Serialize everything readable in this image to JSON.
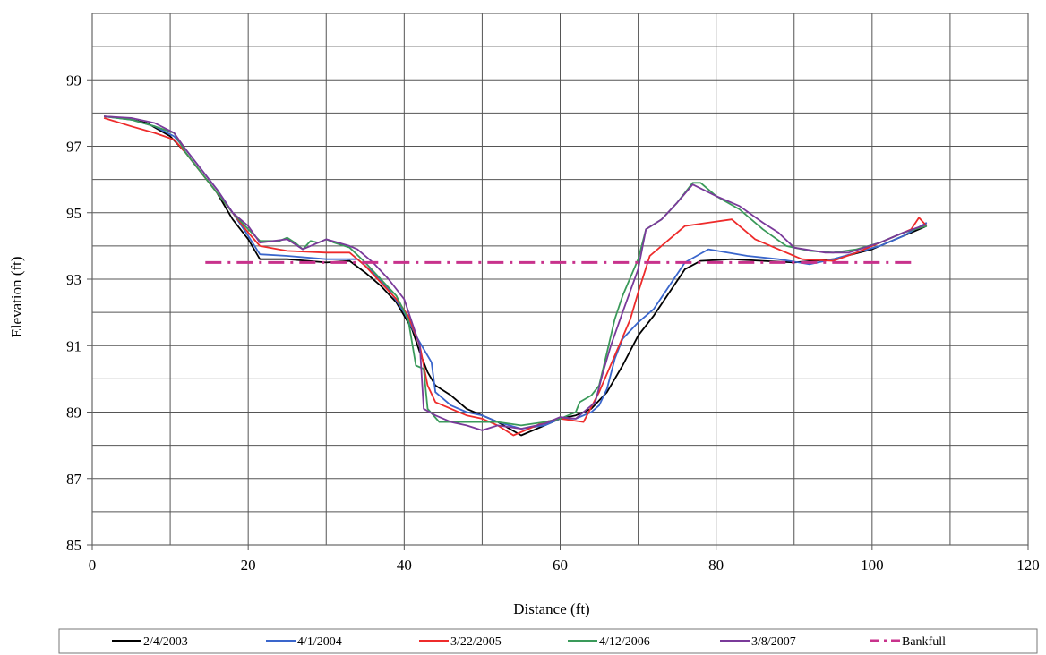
{
  "chart_data": {
    "type": "line",
    "title": "",
    "xlabel": "Distance (ft)",
    "ylabel": "Elevation (ft)",
    "xlim": [
      0,
      120
    ],
    "ylim": [
      85,
      101
    ],
    "xticks": [
      0,
      20,
      40,
      60,
      80,
      100,
      120
    ],
    "yticks": [
      85,
      87,
      89,
      91,
      93,
      95,
      97,
      99
    ],
    "grid": true,
    "legend_position": "bottom",
    "series": [
      {
        "name": "2/4/2003",
        "color": "#000000",
        "dash": "",
        "points": [
          [
            1.5,
            97.9
          ],
          [
            4,
            97.85
          ],
          [
            7,
            97.7
          ],
          [
            10,
            97.3
          ],
          [
            12,
            96.8
          ],
          [
            14,
            96.2
          ],
          [
            16,
            95.6
          ],
          [
            18,
            94.8
          ],
          [
            20,
            94.2
          ],
          [
            21.5,
            93.6
          ],
          [
            25,
            93.6
          ],
          [
            30,
            93.5
          ],
          [
            33,
            93.55
          ],
          [
            35,
            93.2
          ],
          [
            37,
            92.8
          ],
          [
            39,
            92.3
          ],
          [
            41,
            91.5
          ],
          [
            42,
            90.8
          ],
          [
            43,
            90.2
          ],
          [
            44,
            89.8
          ],
          [
            46,
            89.5
          ],
          [
            48,
            89.1
          ],
          [
            50,
            88.9
          ],
          [
            52,
            88.7
          ],
          [
            55,
            88.3
          ],
          [
            58,
            88.6
          ],
          [
            60,
            88.8
          ],
          [
            62,
            88.9
          ],
          [
            64,
            89.1
          ],
          [
            66,
            89.6
          ],
          [
            68,
            90.4
          ],
          [
            70,
            91.3
          ],
          [
            72,
            91.9
          ],
          [
            74,
            92.6
          ],
          [
            76,
            93.3
          ],
          [
            78,
            93.55
          ],
          [
            82,
            93.6
          ],
          [
            86,
            93.55
          ],
          [
            90,
            93.5
          ],
          [
            95,
            93.6
          ],
          [
            100,
            93.9
          ],
          [
            104,
            94.3
          ],
          [
            107,
            94.6
          ]
        ]
      },
      {
        "name": "4/1/2004",
        "color": "#3a66cc",
        "dash": "",
        "points": [
          [
            1.5,
            97.9
          ],
          [
            5,
            97.8
          ],
          [
            8,
            97.6
          ],
          [
            10.5,
            97.3
          ],
          [
            12,
            96.9
          ],
          [
            14,
            96.3
          ],
          [
            16,
            95.7
          ],
          [
            18,
            95.0
          ],
          [
            20,
            94.3
          ],
          [
            21.5,
            93.75
          ],
          [
            25,
            93.7
          ],
          [
            30,
            93.6
          ],
          [
            34,
            93.6
          ],
          [
            36,
            93.2
          ],
          [
            38,
            92.7
          ],
          [
            40,
            92.0
          ],
          [
            41.5,
            91.3
          ],
          [
            42.5,
            90.9
          ],
          [
            43.5,
            90.5
          ],
          [
            44,
            89.6
          ],
          [
            46,
            89.2
          ],
          [
            48,
            89.0
          ],
          [
            50,
            88.9
          ],
          [
            52,
            88.7
          ],
          [
            55,
            88.5
          ],
          [
            58,
            88.6
          ],
          [
            60,
            88.8
          ],
          [
            62,
            88.8
          ],
          [
            64,
            89.0
          ],
          [
            65,
            89.2
          ],
          [
            66,
            89.7
          ],
          [
            67,
            90.6
          ],
          [
            68,
            91.2
          ],
          [
            70,
            91.7
          ],
          [
            72,
            92.1
          ],
          [
            74,
            92.8
          ],
          [
            76,
            93.5
          ],
          [
            79,
            93.9
          ],
          [
            84,
            93.7
          ],
          [
            88,
            93.6
          ],
          [
            92,
            93.45
          ],
          [
            95,
            93.6
          ],
          [
            98,
            93.8
          ],
          [
            101,
            94.0
          ],
          [
            104,
            94.3
          ],
          [
            107,
            94.7
          ]
        ]
      },
      {
        "name": "3/22/2005",
        "color": "#ee2b2b",
        "dash": "",
        "points": [
          [
            1.5,
            97.85
          ],
          [
            5,
            97.6
          ],
          [
            8,
            97.4
          ],
          [
            10.5,
            97.2
          ],
          [
            12,
            96.8
          ],
          [
            14,
            96.2
          ],
          [
            16,
            95.6
          ],
          [
            18,
            95.0
          ],
          [
            20,
            94.4
          ],
          [
            21.5,
            94.0
          ],
          [
            25,
            93.85
          ],
          [
            30,
            93.8
          ],
          [
            33,
            93.8
          ],
          [
            35,
            93.4
          ],
          [
            37,
            92.9
          ],
          [
            39,
            92.4
          ],
          [
            40.5,
            91.9
          ],
          [
            42,
            91.0
          ],
          [
            43,
            89.8
          ],
          [
            44,
            89.3
          ],
          [
            46,
            89.1
          ],
          [
            48,
            88.9
          ],
          [
            50,
            88.8
          ],
          [
            52,
            88.6
          ],
          [
            54,
            88.3
          ],
          [
            56,
            88.5
          ],
          [
            58,
            88.7
          ],
          [
            60,
            88.8
          ],
          [
            63,
            88.7
          ],
          [
            65,
            89.6
          ],
          [
            67,
            90.7
          ],
          [
            69,
            91.8
          ],
          [
            70,
            92.6
          ],
          [
            71.5,
            93.7
          ],
          [
            74,
            94.2
          ],
          [
            76,
            94.6
          ],
          [
            79,
            94.7
          ],
          [
            82,
            94.8
          ],
          [
            85,
            94.2
          ],
          [
            88,
            93.9
          ],
          [
            91,
            93.6
          ],
          [
            95,
            93.55
          ],
          [
            98,
            93.8
          ],
          [
            102,
            94.2
          ],
          [
            105,
            94.5
          ],
          [
            106,
            94.85
          ],
          [
            107,
            94.6
          ]
        ]
      },
      {
        "name": "4/12/2006",
        "color": "#3a9a5a",
        "dash": "",
        "points": [
          [
            1.5,
            97.9
          ],
          [
            5,
            97.8
          ],
          [
            8,
            97.6
          ],
          [
            10.5,
            97.4
          ],
          [
            12,
            96.8
          ],
          [
            14,
            96.2
          ],
          [
            16,
            95.6
          ],
          [
            18,
            95.0
          ],
          [
            20,
            94.5
          ],
          [
            21.5,
            94.15
          ],
          [
            24,
            94.15
          ],
          [
            25,
            94.25
          ],
          [
            26,
            94.1
          ],
          [
            27,
            93.9
          ],
          [
            28,
            94.15
          ],
          [
            29,
            94.1
          ],
          [
            30,
            94.2
          ],
          [
            31,
            94.1
          ],
          [
            33,
            93.95
          ],
          [
            35,
            93.5
          ],
          [
            37,
            93.0
          ],
          [
            39,
            92.5
          ],
          [
            40.5,
            91.8
          ],
          [
            41.5,
            90.4
          ],
          [
            42.5,
            90.3
          ],
          [
            43,
            89.1
          ],
          [
            44.5,
            88.7
          ],
          [
            48,
            88.7
          ],
          [
            52,
            88.7
          ],
          [
            55,
            88.6
          ],
          [
            58,
            88.7
          ],
          [
            60,
            88.8
          ],
          [
            62,
            89.0
          ],
          [
            62.5,
            89.3
          ],
          [
            64,
            89.5
          ],
          [
            65,
            89.8
          ],
          [
            66,
            90.8
          ],
          [
            67,
            91.8
          ],
          [
            68,
            92.5
          ],
          [
            70,
            93.6
          ],
          [
            71,
            94.5
          ],
          [
            73,
            94.8
          ],
          [
            75,
            95.3
          ],
          [
            77,
            95.9
          ],
          [
            78,
            95.9
          ],
          [
            80,
            95.5
          ],
          [
            83,
            95.1
          ],
          [
            86,
            94.5
          ],
          [
            89,
            94.0
          ],
          [
            92,
            93.85
          ],
          [
            95,
            93.8
          ],
          [
            98,
            93.9
          ],
          [
            101,
            94.1
          ],
          [
            104,
            94.4
          ],
          [
            107,
            94.6
          ]
        ]
      },
      {
        "name": "3/8/2007",
        "color": "#7a3a9a",
        "dash": "",
        "points": [
          [
            1.5,
            97.9
          ],
          [
            5,
            97.85
          ],
          [
            8,
            97.7
          ],
          [
            10.5,
            97.4
          ],
          [
            12,
            96.9
          ],
          [
            14,
            96.3
          ],
          [
            16,
            95.7
          ],
          [
            18,
            95.0
          ],
          [
            20,
            94.6
          ],
          [
            21.5,
            94.1
          ],
          [
            25,
            94.2
          ],
          [
            27,
            93.9
          ],
          [
            30,
            94.2
          ],
          [
            33,
            94.0
          ],
          [
            34,
            93.9
          ],
          [
            36,
            93.5
          ],
          [
            38,
            93.0
          ],
          [
            40,
            92.4
          ],
          [
            41,
            91.7
          ],
          [
            42,
            91.0
          ],
          [
            42.5,
            89.1
          ],
          [
            44,
            88.9
          ],
          [
            46,
            88.7
          ],
          [
            48,
            88.6
          ],
          [
            50,
            88.45
          ],
          [
            52,
            88.6
          ],
          [
            55,
            88.5
          ],
          [
            58,
            88.65
          ],
          [
            60,
            88.85
          ],
          [
            62,
            88.8
          ],
          [
            63,
            89.0
          ],
          [
            64.5,
            89.3
          ],
          [
            65.5,
            90.2
          ],
          [
            66.5,
            91.0
          ],
          [
            68,
            92.0
          ],
          [
            70,
            93.3
          ],
          [
            71,
            94.5
          ],
          [
            73,
            94.8
          ],
          [
            75,
            95.3
          ],
          [
            77,
            95.85
          ],
          [
            80,
            95.5
          ],
          [
            83,
            95.2
          ],
          [
            86,
            94.7
          ],
          [
            88,
            94.4
          ],
          [
            90,
            93.95
          ],
          [
            94,
            93.8
          ],
          [
            97,
            93.8
          ],
          [
            101,
            94.1
          ],
          [
            104,
            94.4
          ],
          [
            107,
            94.65
          ]
        ]
      },
      {
        "name": "Bankfull",
        "color": "#c8328c",
        "dash": "18,7,3,7",
        "points": [
          [
            14.5,
            93.5
          ],
          [
            105,
            93.5
          ]
        ]
      }
    ]
  }
}
